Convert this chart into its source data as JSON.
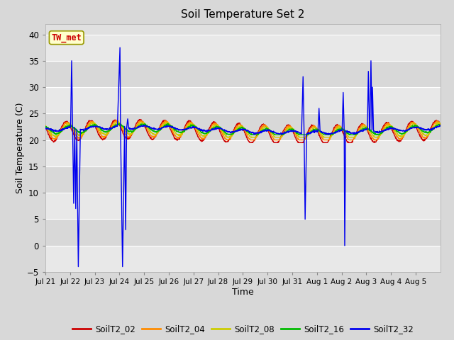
{
  "title": "Soil Temperature Set 2",
  "xlabel": "Time",
  "ylabel": "Soil Temperature (C)",
  "ylim": [
    -5,
    42
  ],
  "yticks": [
    -5,
    0,
    5,
    10,
    15,
    20,
    25,
    30,
    35,
    40
  ],
  "colors": {
    "SoilT2_02": "#cc0000",
    "SoilT2_04": "#ff8c00",
    "SoilT2_08": "#cccc00",
    "SoilT2_16": "#00bb00",
    "SoilT2_32": "#0000ee"
  },
  "legend_label": "TW_met",
  "bg_color": "#dddddd",
  "plot_bg_light": "#e8e8e8",
  "plot_bg_dark": "#d0d0d0",
  "grid_color": "#ffffff"
}
